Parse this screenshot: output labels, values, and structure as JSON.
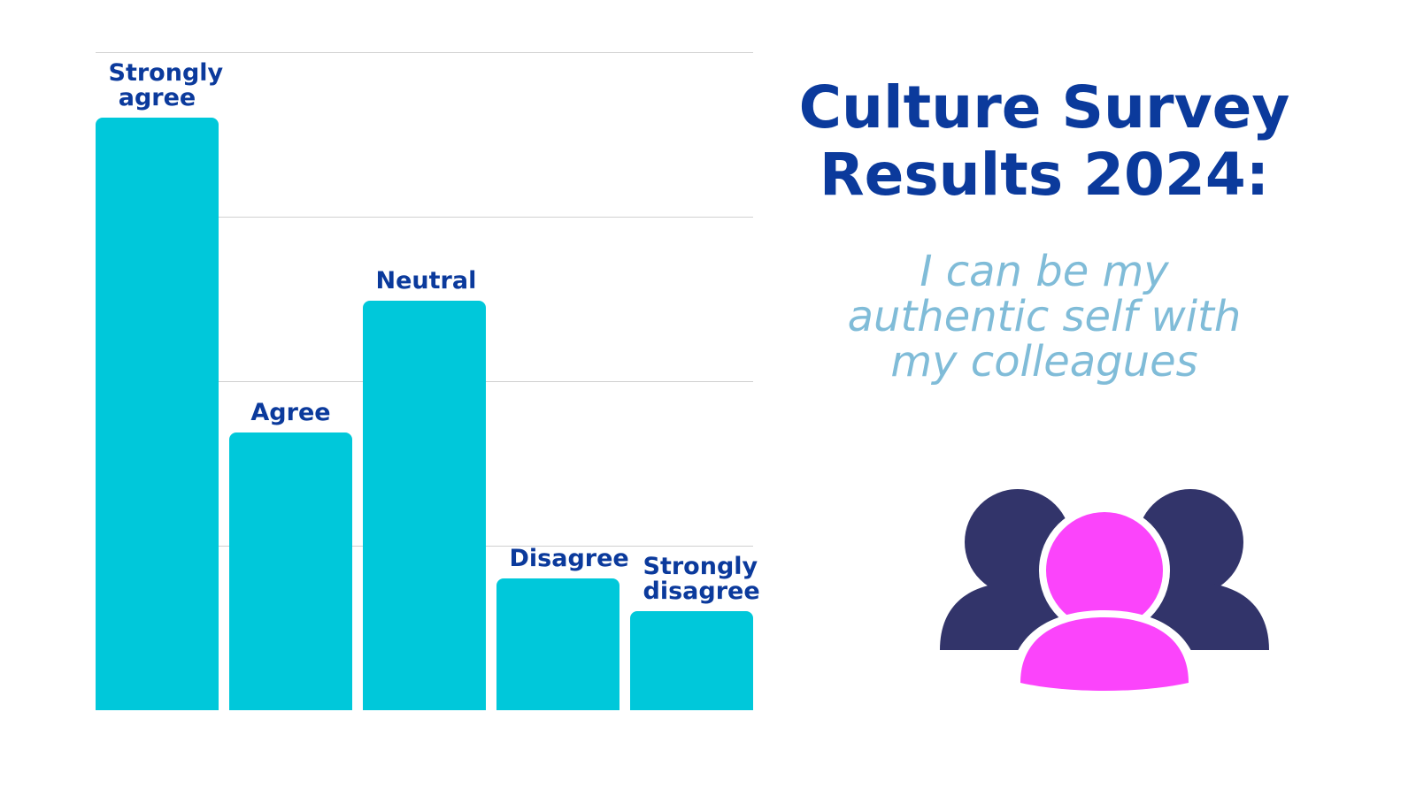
{
  "chart_data": {
    "type": "bar",
    "title": "Culture Survey Results 2024:",
    "subtitle": "I can be my authentic self with my colleagues",
    "categories": [
      "Strongly agree",
      "Agree",
      "Neutral",
      "Disagree",
      "Strongly disagree"
    ],
    "values": [
      3.6,
      1.69,
      2.49,
      0.8,
      0.6
    ],
    "color": "#00c8da",
    "ylim": [
      0,
      4
    ],
    "yticks": [
      1,
      2,
      3,
      4
    ],
    "grid": true
  }
}
